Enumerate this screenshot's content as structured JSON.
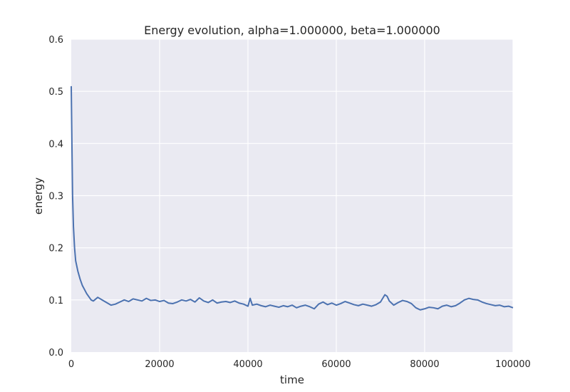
{
  "chart_data": {
    "type": "line",
    "title": "Energy evolution, alpha=1.000000, beta=1.000000",
    "xlabel": "time",
    "ylabel": "energy",
    "xlim": [
      0,
      100000
    ],
    "ylim": [
      0.0,
      0.6
    ],
    "xticks": [
      0,
      20000,
      40000,
      60000,
      80000,
      100000
    ],
    "xtick_labels": [
      "0",
      "20000",
      "40000",
      "60000",
      "80000",
      "100000"
    ],
    "yticks": [
      0.0,
      0.1,
      0.2,
      0.3,
      0.4,
      0.5,
      0.6
    ],
    "ytick_labels": [
      "0.0",
      "0.1",
      "0.2",
      "0.3",
      "0.4",
      "0.5",
      "0.6"
    ],
    "grid": true,
    "background": "#EAEAF2",
    "series": [
      {
        "color": "#4C72B0",
        "x": [
          0,
          150,
          300,
          500,
          750,
          1000,
          1500,
          2000,
          2500,
          3000,
          3500,
          4000,
          4500,
          5000,
          6000,
          7000,
          8000,
          9000,
          10000,
          11000,
          12000,
          13000,
          14000,
          15000,
          16000,
          17000,
          18000,
          19000,
          20000,
          21000,
          22000,
          23000,
          24000,
          25000,
          26000,
          27000,
          28000,
          29000,
          30000,
          31000,
          32000,
          33000,
          34000,
          35000,
          36000,
          37000,
          38000,
          39000,
          40000,
          40500,
          41000,
          42000,
          43000,
          44000,
          45000,
          46000,
          47000,
          48000,
          49000,
          50000,
          51000,
          52000,
          53000,
          54000,
          55000,
          56000,
          57000,
          58000,
          59000,
          60000,
          61000,
          62000,
          63000,
          64000,
          65000,
          66000,
          67000,
          68000,
          69000,
          70000,
          71000,
          71500,
          72000,
          73000,
          74000,
          75000,
          76000,
          77000,
          78000,
          79000,
          80000,
          81000,
          82000,
          83000,
          84000,
          85000,
          86000,
          87000,
          88000,
          89000,
          90000,
          91000,
          92000,
          93000,
          94000,
          95000,
          96000,
          97000,
          98000,
          99000,
          100000
        ],
        "y": [
          0.51,
          0.4,
          0.3,
          0.24,
          0.2,
          0.175,
          0.155,
          0.14,
          0.128,
          0.12,
          0.112,
          0.106,
          0.1,
          0.098,
          0.105,
          0.1,
          0.095,
          0.09,
          0.092,
          0.096,
          0.1,
          0.097,
          0.102,
          0.1,
          0.098,
          0.103,
          0.099,
          0.1,
          0.097,
          0.099,
          0.094,
          0.093,
          0.096,
          0.1,
          0.098,
          0.101,
          0.096,
          0.104,
          0.098,
          0.095,
          0.1,
          0.094,
          0.096,
          0.097,
          0.095,
          0.098,
          0.094,
          0.092,
          0.088,
          0.103,
          0.09,
          0.092,
          0.089,
          0.087,
          0.09,
          0.088,
          0.086,
          0.089,
          0.087,
          0.09,
          0.085,
          0.088,
          0.09,
          0.087,
          0.083,
          0.092,
          0.096,
          0.091,
          0.094,
          0.09,
          0.093,
          0.097,
          0.094,
          0.091,
          0.089,
          0.092,
          0.09,
          0.088,
          0.091,
          0.096,
          0.11,
          0.107,
          0.098,
          0.09,
          0.095,
          0.099,
          0.097,
          0.093,
          0.085,
          0.081,
          0.083,
          0.086,
          0.085,
          0.083,
          0.088,
          0.09,
          0.087,
          0.089,
          0.094,
          0.1,
          0.103,
          0.101,
          0.1,
          0.096,
          0.093,
          0.091,
          0.089,
          0.09,
          0.087,
          0.088,
          0.085
        ]
      }
    ]
  }
}
